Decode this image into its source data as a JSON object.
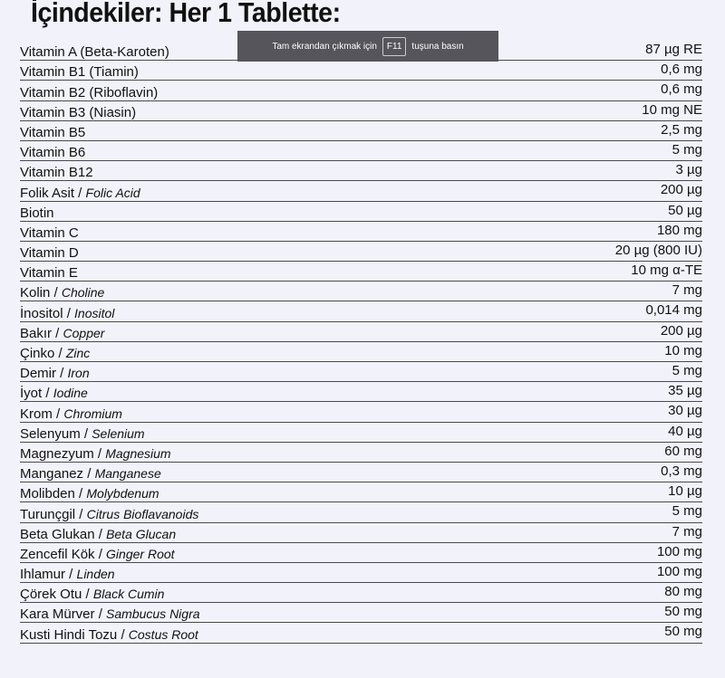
{
  "title": "İçindekiler: Her 1 Tablette:",
  "toast": {
    "before": "Tam ekrandan çıkmak için",
    "key": "F11",
    "after": "tuşuna basın"
  },
  "rows": [
    {
      "tr": "Vitamin A (Beta-Karoten)",
      "en": "",
      "value": "87 µg RE"
    },
    {
      "tr": "Vitamin B1 (Tiamin)",
      "en": "",
      "value": "0,6 mg"
    },
    {
      "tr": "Vitamin B2 (Riboflavin)",
      "en": "",
      "value": "0,6 mg"
    },
    {
      "tr": "Vitamin B3 (Niasin)",
      "en": "",
      "value": "10 mg NE"
    },
    {
      "tr": "Vitamin B5",
      "en": "",
      "value": "2,5 mg"
    },
    {
      "tr": "Vitamin B6",
      "en": "",
      "value": "5 mg"
    },
    {
      "tr": "Vitamin B12",
      "en": "",
      "value": "3 µg"
    },
    {
      "tr": "Folik Asit / ",
      "en": "Folic Acid",
      "value": "200 µg"
    },
    {
      "tr": "Biotin",
      "en": "",
      "value": "50 µg"
    },
    {
      "tr": "Vitamin C",
      "en": "",
      "value": "180 mg"
    },
    {
      "tr": "Vitamin D",
      "en": "",
      "value": "20 µg (800 IU)"
    },
    {
      "tr": "Vitamin E",
      "en": "",
      "value": "10 mg α-TE"
    },
    {
      "tr": "Kolin / ",
      "en": "Choline",
      "value": "7 mg"
    },
    {
      "tr": "İnositol / ",
      "en": "Inositol",
      "value": "0,014 mg"
    },
    {
      "tr": "Bakır / ",
      "en": "Copper",
      "value": "200 µg"
    },
    {
      "tr": "Çinko / ",
      "en": "Zinc",
      "value": "10 mg"
    },
    {
      "tr": "Demir / ",
      "en": "Iron",
      "value": "5 mg"
    },
    {
      "tr": "İyot / ",
      "en": "Iodine",
      "value": "35 µg"
    },
    {
      "tr": "Krom / ",
      "en": "Chromium",
      "value": "30 µg"
    },
    {
      "tr": "Selenyum / ",
      "en": "Selenium",
      "value": "40 µg"
    },
    {
      "tr": "Magnezyum / ",
      "en": "Magnesium",
      "value": "60 mg"
    },
    {
      "tr": "Manganez / ",
      "en": "Manganese",
      "value": "0,3 mg"
    },
    {
      "tr": "Molibden / ",
      "en": "Molybdenum",
      "value": "10 µg"
    },
    {
      "tr": "Turunçgil / ",
      "en": "Citrus Bioflavanoids",
      "value": "5 mg"
    },
    {
      "tr": "Beta Glukan / ",
      "en": "Beta Glucan",
      "value": "7 mg"
    },
    {
      "tr": "Zencefil Kök / ",
      "en": "Ginger Root",
      "value": "100 mg"
    },
    {
      "tr": "Ihlamur / ",
      "en": "Linden",
      "value": "100 mg"
    },
    {
      "tr": "Çörek Otu  / ",
      "en": "Black Cumin",
      "value": "80 mg"
    },
    {
      "tr": "Kara Mürver / ",
      "en": "Sambucus Nigra",
      "value": "50 mg"
    },
    {
      "tr": "Kusti Hindi Tozu / ",
      "en": "Costus Root",
      "value": "50 mg"
    }
  ]
}
